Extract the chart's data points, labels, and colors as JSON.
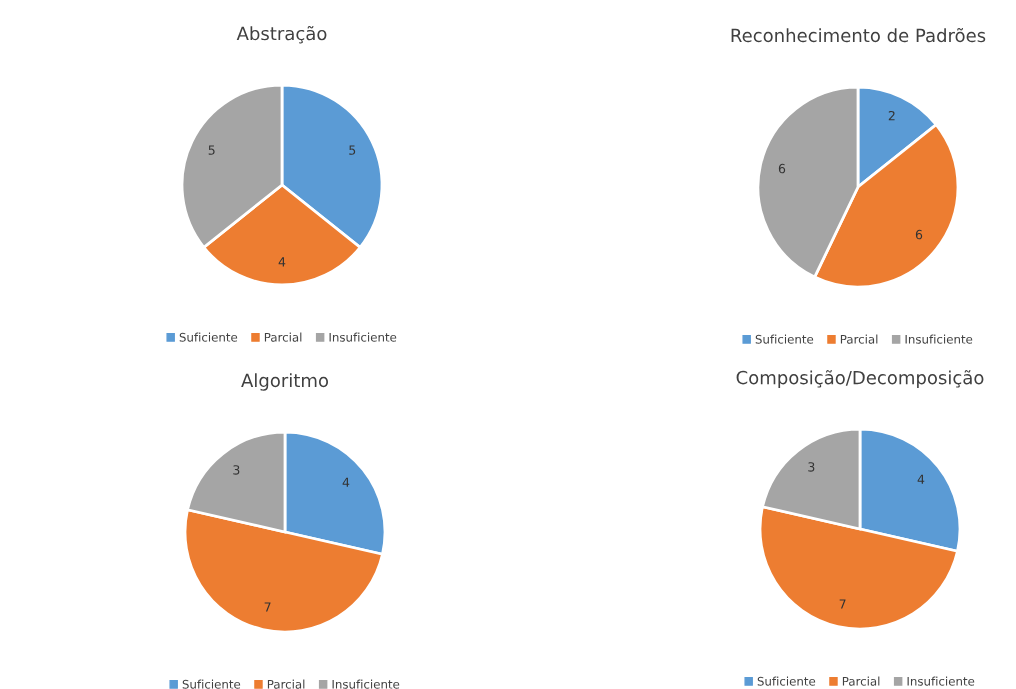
{
  "chart_data": [
    {
      "type": "pie",
      "title": "Abstração",
      "categories": [
        "Suficiente",
        "Parcial",
        "Insuficiente"
      ],
      "values": [
        5,
        4,
        5
      ],
      "colors": [
        "#5b9bd5",
        "#ed7d31",
        "#a5a5a5"
      ],
      "data_labels": true,
      "legend": "bottom"
    },
    {
      "type": "pie",
      "title": "Reconhecimento de Padrões",
      "categories": [
        "Suficiente",
        "Parcial",
        "Insuficiente"
      ],
      "values": [
        2,
        6,
        6
      ],
      "colors": [
        "#5b9bd5",
        "#ed7d31",
        "#a5a5a5"
      ],
      "data_labels": true,
      "legend": "bottom"
    },
    {
      "type": "pie",
      "title": "Algoritmo",
      "categories": [
        "Suficiente",
        "Parcial",
        "Insuficiente"
      ],
      "values": [
        4,
        7,
        3
      ],
      "colors": [
        "#5b9bd5",
        "#ed7d31",
        "#a5a5a5"
      ],
      "data_labels": true,
      "legend": "bottom"
    },
    {
      "type": "pie",
      "title": "Composição/Decomposição",
      "categories": [
        "Suficiente",
        "Parcial",
        "Insuficiente"
      ],
      "values": [
        4,
        7,
        3
      ],
      "colors": [
        "#5b9bd5",
        "#ed7d31",
        "#a5a5a5"
      ],
      "data_labels": true,
      "legend": "bottom"
    }
  ]
}
